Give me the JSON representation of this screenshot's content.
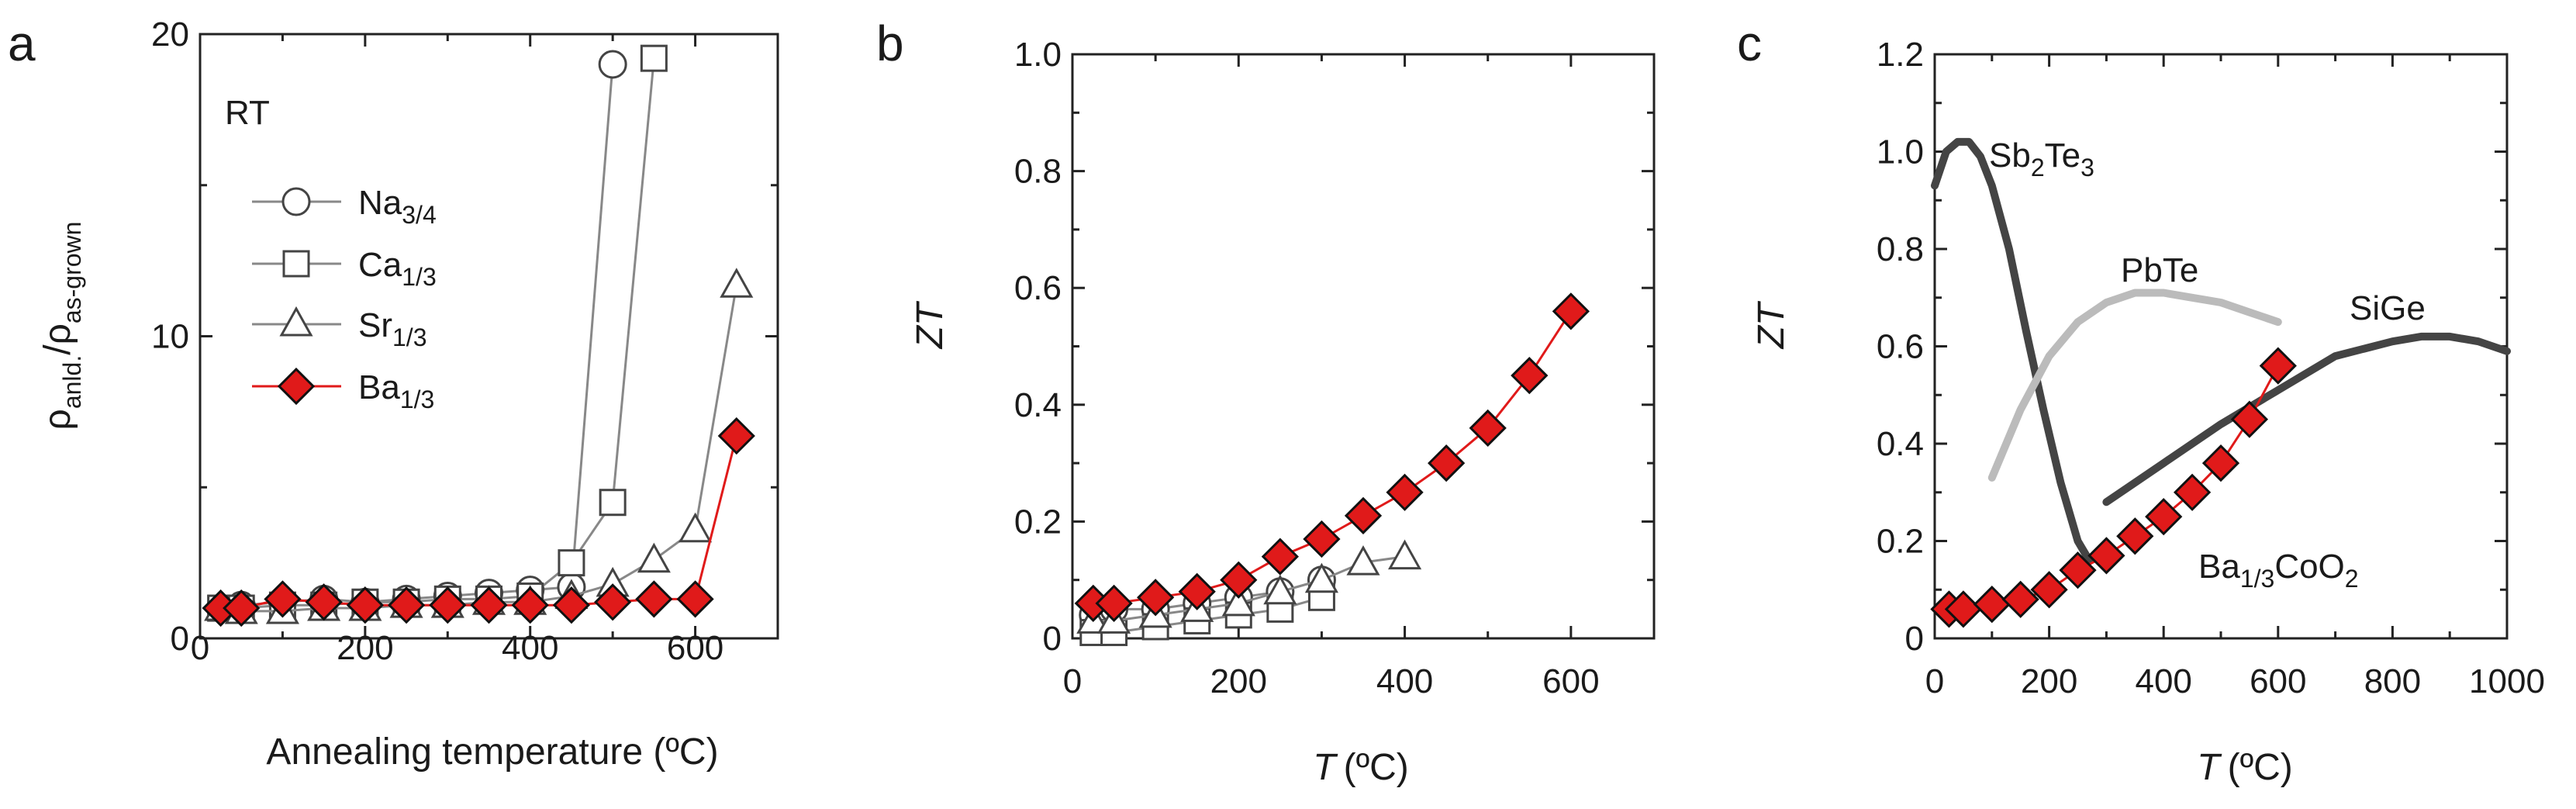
{
  "chart_data": [
    {
      "panel": "a",
      "type": "line",
      "title": "",
      "xlabel": "Annealing temperature (ºC)",
      "ylabel": {
        "main": "ρ",
        "sub1": "anld.",
        "slash": "/ρ",
        "sub2": "as-grown"
      },
      "xlim": [
        0,
        700
      ],
      "ylim": [
        0,
        20
      ],
      "xticks": [
        0,
        200,
        400,
        600
      ],
      "yticks": [
        0,
        10,
        20
      ],
      "annotation": "RT",
      "series": [
        {
          "name": "Na3/4",
          "label": "Na",
          "sub": "3/4",
          "marker": "circle",
          "color": "#888888",
          "x": [
            25,
            50,
            100,
            150,
            200,
            250,
            300,
            350,
            400,
            450,
            500
          ],
          "y": [
            1.0,
            1.1,
            1.2,
            1.3,
            1.2,
            1.3,
            1.4,
            1.5,
            1.6,
            1.7,
            19.0
          ]
        },
        {
          "name": "Ca1/3",
          "label": "Ca",
          "sub": "1/3",
          "marker": "square",
          "color": "#888888",
          "x": [
            25,
            50,
            100,
            150,
            200,
            250,
            300,
            350,
            400,
            450,
            500,
            550
          ],
          "y": [
            1.0,
            1.0,
            1.1,
            1.1,
            1.2,
            1.2,
            1.3,
            1.3,
            1.4,
            2.5,
            4.5,
            19.2
          ]
        },
        {
          "name": "Sr1/3",
          "label": "Sr",
          "sub": "1/3",
          "marker": "triangle",
          "color": "#888888",
          "x": [
            25,
            50,
            100,
            150,
            200,
            250,
            300,
            350,
            400,
            450,
            500,
            550,
            600,
            650
          ],
          "y": [
            1.0,
            0.9,
            0.9,
            1.0,
            1.0,
            1.1,
            1.1,
            1.2,
            1.2,
            1.4,
            1.8,
            2.6,
            3.6,
            11.7
          ]
        },
        {
          "name": "Ba1/3",
          "label": "Ba",
          "sub": "1/3",
          "marker": "diamond",
          "color": "#e01a1a",
          "x": [
            25,
            50,
            100,
            150,
            200,
            250,
            300,
            350,
            400,
            450,
            500,
            550,
            600,
            650
          ],
          "y": [
            1.0,
            1.0,
            1.3,
            1.2,
            1.1,
            1.1,
            1.1,
            1.1,
            1.1,
            1.1,
            1.2,
            1.3,
            1.3,
            6.7
          ]
        }
      ]
    },
    {
      "panel": "b",
      "type": "line",
      "title": "",
      "xlabel": "T (ºC)",
      "xlabel_var": "T",
      "xlabel_unit": "(ºC)",
      "ylabel": "ZT",
      "xlim": [
        0,
        700
      ],
      "ylim": [
        0,
        1.0
      ],
      "xticks": [
        0,
        200,
        400,
        600
      ],
      "yticks": [
        0,
        0.2,
        0.4,
        0.6,
        0.8,
        1.0
      ],
      "ytick_labels": [
        "0",
        "0.2",
        "0.4",
        "0.6",
        "0.8",
        "1.0"
      ],
      "series": [
        {
          "name": "Na3/4",
          "marker": "circle",
          "color": "#888888",
          "x": [
            25,
            50,
            100,
            150,
            200,
            250,
            300
          ],
          "y": [
            0.04,
            0.05,
            0.05,
            0.06,
            0.07,
            0.08,
            0.1
          ]
        },
        {
          "name": "Ca1/3",
          "marker": "square",
          "color": "#888888",
          "x": [
            25,
            50,
            100,
            150,
            200,
            250,
            300
          ],
          "y": [
            0.01,
            0.01,
            0.02,
            0.03,
            0.04,
            0.05,
            0.07
          ]
        },
        {
          "name": "Sr1/3",
          "marker": "triangle",
          "color": "#888888",
          "x": [
            25,
            50,
            100,
            150,
            200,
            250,
            300,
            350,
            400
          ],
          "y": [
            0.03,
            0.03,
            0.04,
            0.05,
            0.06,
            0.08,
            0.1,
            0.13,
            0.14
          ]
        },
        {
          "name": "Ba1/3",
          "marker": "diamond",
          "color": "#e01a1a",
          "x": [
            25,
            50,
            100,
            150,
            200,
            250,
            300,
            350,
            400,
            450,
            500,
            550,
            600
          ],
          "y": [
            0.06,
            0.06,
            0.07,
            0.08,
            0.1,
            0.14,
            0.17,
            0.21,
            0.25,
            0.3,
            0.36,
            0.45,
            0.56
          ]
        }
      ]
    },
    {
      "panel": "c",
      "type": "line",
      "title": "",
      "xlabel": "T (ºC)",
      "xlabel_var": "T",
      "xlabel_unit": "(ºC)",
      "ylabel": "ZT",
      "xlim": [
        0,
        1000
      ],
      "ylim": [
        0,
        1.2
      ],
      "xticks": [
        0,
        200,
        400,
        600,
        800,
        1000
      ],
      "yticks": [
        0,
        0.2,
        0.4,
        0.6,
        0.8,
        1.0,
        1.2
      ],
      "ytick_labels": [
        "0",
        "0.2",
        "0.4",
        "0.6",
        "0.8",
        "1.0",
        "1.2"
      ],
      "series": [
        {
          "name": "Sb2Te3",
          "label": "Sb",
          "sub1": "2",
          "mid": "Te",
          "sub2": "3",
          "marker": "none",
          "color": "#444444",
          "x": [
            0,
            20,
            40,
            60,
            80,
            100,
            130,
            160,
            190,
            220,
            250,
            270
          ],
          "y": [
            0.93,
            1.0,
            1.02,
            1.02,
            0.99,
            0.93,
            0.8,
            0.63,
            0.47,
            0.32,
            0.2,
            0.16
          ]
        },
        {
          "name": "PbTe",
          "label": "PbTe",
          "marker": "none",
          "color": "#bbbbbb",
          "x": [
            100,
            150,
            200,
            250,
            300,
            350,
            400,
            450,
            500,
            550,
            600
          ],
          "y": [
            0.33,
            0.47,
            0.58,
            0.65,
            0.69,
            0.71,
            0.71,
            0.7,
            0.69,
            0.67,
            0.65
          ]
        },
        {
          "name": "SiGe",
          "label": "SiGe",
          "marker": "none",
          "color": "#444444",
          "x": [
            300,
            400,
            500,
            600,
            700,
            800,
            850,
            900,
            950,
            1000
          ],
          "y": [
            0.28,
            0.36,
            0.44,
            0.51,
            0.58,
            0.61,
            0.62,
            0.62,
            0.61,
            0.59
          ]
        },
        {
          "name": "Ba1/3CoO2",
          "label": "Ba",
          "sub1": "1/3",
          "mid": "CoO",
          "sub2": "2",
          "marker": "diamond",
          "color": "#e01a1a",
          "x": [
            25,
            50,
            100,
            150,
            200,
            250,
            300,
            350,
            400,
            450,
            500,
            550,
            600
          ],
          "y": [
            0.06,
            0.06,
            0.07,
            0.08,
            0.1,
            0.14,
            0.17,
            0.21,
            0.25,
            0.3,
            0.36,
            0.45,
            0.56
          ]
        }
      ]
    }
  ],
  "panels": {
    "a": {
      "label": "a"
    },
    "b": {
      "label": "b"
    },
    "c": {
      "label": "c"
    }
  }
}
